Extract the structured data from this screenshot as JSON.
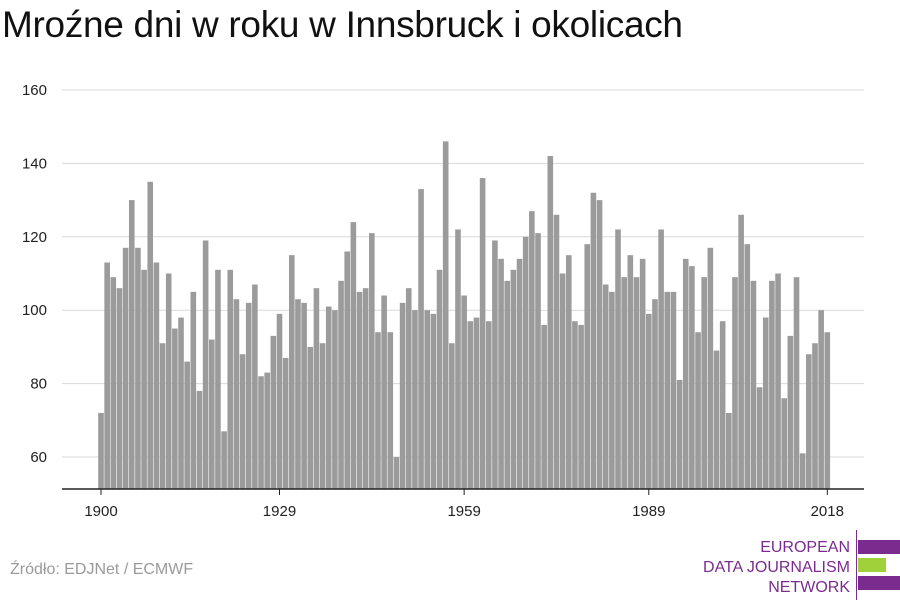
{
  "header": {
    "title": "Mroźne dni w roku w Innsbruck i okolicach"
  },
  "footer": {
    "source": "Źródło: EDJNet / ECMWF"
  },
  "logo": {
    "line1": "EUROPEAN",
    "line2": "DATA JOURNALISM",
    "line3": "NETWORK",
    "colors": {
      "purple": "#7a2c8e",
      "green": "#9fd23a"
    }
  },
  "chart_data": {
    "type": "bar",
    "title": "Mroźne dni w roku w Innsbruck i okolicach",
    "bar_color": "#9b9b9b",
    "grid": true,
    "x_ticks": [
      "1900",
      "1929",
      "1959",
      "1989",
      "2018"
    ],
    "y_ticks": [
      "60",
      "80",
      "100",
      "120",
      "140",
      "160"
    ],
    "ylim": [
      52,
      160
    ],
    "x": [
      1900,
      1901,
      1902,
      1903,
      1904,
      1905,
      1906,
      1907,
      1908,
      1909,
      1910,
      1911,
      1912,
      1913,
      1914,
      1915,
      1916,
      1917,
      1918,
      1919,
      1920,
      1921,
      1922,
      1923,
      1924,
      1925,
      1926,
      1927,
      1928,
      1929,
      1930,
      1931,
      1932,
      1933,
      1934,
      1935,
      1936,
      1937,
      1938,
      1939,
      1940,
      1941,
      1942,
      1943,
      1944,
      1945,
      1946,
      1947,
      1948,
      1949,
      1950,
      1951,
      1952,
      1953,
      1954,
      1955,
      1956,
      1957,
      1958,
      1959,
      1960,
      1961,
      1962,
      1963,
      1964,
      1965,
      1966,
      1967,
      1968,
      1969,
      1970,
      1971,
      1972,
      1973,
      1974,
      1975,
      1976,
      1977,
      1978,
      1979,
      1980,
      1981,
      1982,
      1983,
      1984,
      1985,
      1986,
      1987,
      1988,
      1989,
      1990,
      1991,
      1992,
      1993,
      1994,
      1995,
      1996,
      1997,
      1998,
      1999,
      2000,
      2001,
      2002,
      2003,
      2004,
      2005,
      2006,
      2007,
      2008,
      2009,
      2010,
      2011,
      2012,
      2013,
      2014,
      2015,
      2016,
      2017,
      2018
    ],
    "values": [
      72,
      113,
      109,
      106,
      117,
      130,
      117,
      111,
      135,
      113,
      91,
      110,
      95,
      98,
      86,
      105,
      78,
      119,
      92,
      111,
      67,
      111,
      103,
      88,
      102,
      107,
      82,
      83,
      93,
      99,
      87,
      115,
      103,
      102,
      90,
      106,
      91,
      101,
      100,
      108,
      116,
      124,
      105,
      106,
      121,
      94,
      104,
      94,
      60,
      102,
      106,
      100,
      133,
      100,
      99,
      111,
      146,
      91,
      122,
      104,
      97,
      98,
      136,
      97,
      119,
      114,
      108,
      111,
      114,
      120,
      127,
      121,
      96,
      142,
      126,
      110,
      115,
      97,
      96,
      118,
      132,
      130,
      107,
      105,
      122,
      109,
      115,
      109,
      114,
      99,
      103,
      122,
      105,
      105,
      81,
      114,
      112,
      94,
      109,
      117,
      89,
      97,
      72,
      109,
      126,
      118,
      108,
      79,
      98,
      108,
      110,
      76,
      93,
      109,
      61,
      88,
      91,
      100,
      94
    ]
  }
}
